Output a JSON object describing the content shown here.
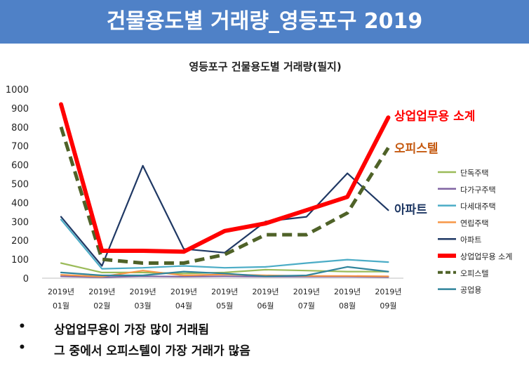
{
  "slide": {
    "title": "건물용도별 거래량_영등포구 2019"
  },
  "chart_data": {
    "type": "line",
    "title": "영등포구 건물용도별 거래량(필지)",
    "ylim": [
      0,
      1000
    ],
    "yticks": [
      "0",
      "100",
      "200",
      "300",
      "400",
      "500",
      "600",
      "700",
      "800",
      "900",
      "1000"
    ],
    "categories": [
      {
        "year": "2019년",
        "month": "01월"
      },
      {
        "year": "2019년",
        "month": "02월"
      },
      {
        "year": "2019년",
        "month": "03월"
      },
      {
        "year": "2019년",
        "month": "04월"
      },
      {
        "year": "2019년",
        "month": "05월"
      },
      {
        "year": "2019년",
        "month": "06월"
      },
      {
        "year": "2019년",
        "month": "07월"
      },
      {
        "year": "2019년",
        "month": "08월"
      },
      {
        "year": "2019년",
        "month": "09월"
      }
    ],
    "series": [
      {
        "name": "단독주택",
        "color": "#9bbb59",
        "style": "solid",
        "values": [
          80,
          30,
          30,
          25,
          30,
          45,
          40,
          35,
          35
        ]
      },
      {
        "name": "다가구주택",
        "color": "#8064a2",
        "style": "solid",
        "values": [
          10,
          5,
          10,
          8,
          10,
          8,
          8,
          8,
          6
        ]
      },
      {
        "name": "다세대주택",
        "color": "#4bacc6",
        "style": "solid",
        "values": [
          310,
          50,
          55,
          65,
          55,
          60,
          80,
          98,
          85
        ]
      },
      {
        "name": "연립주택",
        "color": "#f79646",
        "style": "solid",
        "values": [
          18,
          8,
          40,
          15,
          20,
          15,
          12,
          12,
          10
        ]
      },
      {
        "name": "아파트",
        "color": "#1f3864",
        "style": "solid",
        "values": [
          325,
          65,
          595,
          155,
          135,
          300,
          325,
          555,
          360
        ]
      },
      {
        "name": "상업업무용 소계",
        "color": "#ff0000",
        "style": "thick",
        "values": [
          920,
          145,
          145,
          140,
          250,
          290,
          360,
          430,
          850
        ]
      },
      {
        "name": "오피스텔",
        "color": "#4f6228",
        "style": "dashed",
        "values": [
          800,
          100,
          80,
          80,
          125,
          230,
          230,
          345,
          690
        ]
      },
      {
        "name": "공업용",
        "color": "#31859c",
        "style": "solid",
        "values": [
          30,
          15,
          15,
          35,
          25,
          10,
          15,
          60,
          35
        ]
      }
    ],
    "annotations": [
      {
        "text": "상업업무용 소계",
        "color": "#ff0000"
      },
      {
        "text": "오피스텔",
        "color": "#c55a11"
      },
      {
        "text": "아파트",
        "color": "#1f3864"
      }
    ]
  },
  "bullets": [
    {
      "marker": "•",
      "text": "상업업무용이 가장 많이 거래됨"
    },
    {
      "marker": "•",
      "text": "그 중에서 오피스텔이 가장 거래가 많음"
    }
  ]
}
